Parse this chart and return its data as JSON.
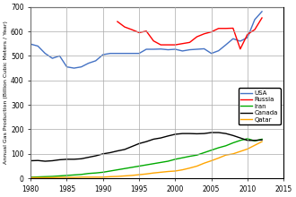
{
  "title": "",
  "xlabel": "",
  "ylabel": "Annual Gas Production (Billion Cubic Meters / Year)",
  "xlim": [
    1980,
    2015
  ],
  "ylim": [
    0,
    700
  ],
  "yticks": [
    0,
    100,
    200,
    300,
    400,
    500,
    600,
    700
  ],
  "xticks": [
    1980,
    1985,
    1990,
    1995,
    2000,
    2005,
    2010,
    2015
  ],
  "legend_loc": "center right",
  "countries": [
    "USA",
    "Russia",
    "Iran",
    "Canada",
    "Qatar"
  ],
  "colors": [
    "#4472C4",
    "#FF0000",
    "#00AA00",
    "#000000",
    "#FFA500"
  ],
  "USA": {
    "years": [
      1980,
      1981,
      1982,
      1983,
      1984,
      1985,
      1986,
      1987,
      1988,
      1989,
      1990,
      1991,
      1992,
      1993,
      1994,
      1995,
      1996,
      1997,
      1998,
      1999,
      2000,
      2001,
      2002,
      2003,
      2004,
      2005,
      2006,
      2007,
      2008,
      2009,
      2010,
      2011,
      2012
    ],
    "values": [
      548,
      540,
      510,
      490,
      500,
      455,
      450,
      455,
      470,
      480,
      505,
      510,
      510,
      510,
      510,
      510,
      527,
      527,
      528,
      525,
      527,
      520,
      525,
      527,
      529,
      510,
      521,
      545,
      570,
      560,
      575,
      648,
      681
    ]
  },
  "Russia": {
    "years": [
      1992,
      1993,
      1994,
      1995,
      1996,
      1997,
      1998,
      1999,
      2000,
      2001,
      2002,
      2003,
      2004,
      2005,
      2006,
      2007,
      2008,
      2009,
      2010,
      2011,
      2012
    ],
    "values": [
      640,
      618,
      607,
      595,
      601,
      561,
      545,
      545,
      545,
      550,
      555,
      578,
      590,
      598,
      612,
      612,
      613,
      528,
      588,
      607,
      655
    ]
  },
  "Iran": {
    "years": [
      1980,
      1981,
      1982,
      1983,
      1984,
      1985,
      1986,
      1987,
      1988,
      1989,
      1990,
      1991,
      1992,
      1993,
      1994,
      1995,
      1996,
      1997,
      1998,
      1999,
      2000,
      2001,
      2002,
      2003,
      2004,
      2005,
      2006,
      2007,
      2008,
      2009,
      2010,
      2011,
      2012
    ],
    "values": [
      5,
      6,
      7,
      8,
      10,
      12,
      14,
      16,
      20,
      22,
      25,
      30,
      35,
      40,
      45,
      50,
      55,
      60,
      65,
      70,
      78,
      84,
      90,
      95,
      105,
      115,
      125,
      133,
      145,
      155,
      162,
      153,
      160
    ]
  },
  "Canada": {
    "years": [
      1980,
      1981,
      1982,
      1983,
      1984,
      1985,
      1986,
      1987,
      1988,
      1989,
      1990,
      1991,
      1992,
      1993,
      1994,
      1995,
      1996,
      1997,
      1998,
      1999,
      2000,
      2001,
      2002,
      2003,
      2004,
      2005,
      2006,
      2007,
      2008,
      2009,
      2010,
      2011,
      2012
    ],
    "values": [
      72,
      73,
      70,
      72,
      76,
      78,
      78,
      80,
      86,
      92,
      100,
      105,
      112,
      118,
      130,
      142,
      150,
      160,
      165,
      173,
      180,
      183,
      183,
      182,
      183,
      187,
      187,
      183,
      175,
      165,
      155,
      155,
      157
    ]
  },
  "Qatar": {
    "years": [
      1980,
      1981,
      1982,
      1983,
      1984,
      1985,
      1986,
      1987,
      1988,
      1989,
      1990,
      1991,
      1992,
      1993,
      1994,
      1995,
      1996,
      1997,
      1998,
      1999,
      2000,
      2001,
      2002,
      2003,
      2004,
      2005,
      2006,
      2007,
      2008,
      2009,
      2010,
      2011,
      2012
    ],
    "values": [
      3,
      3,
      3,
      3,
      4,
      4,
      4,
      5,
      5,
      5,
      5,
      7,
      8,
      10,
      12,
      15,
      18,
      22,
      25,
      28,
      30,
      35,
      42,
      50,
      62,
      72,
      83,
      95,
      100,
      110,
      120,
      135,
      150
    ]
  }
}
